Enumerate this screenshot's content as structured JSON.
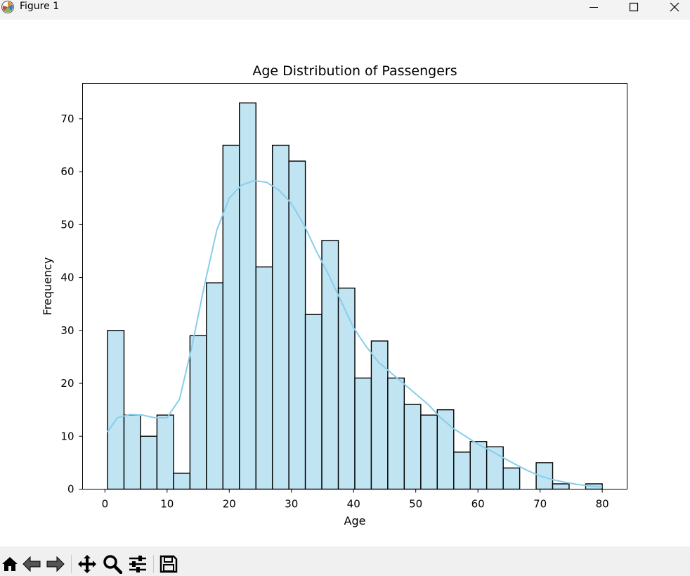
{
  "window": {
    "title": "Figure 1",
    "controls": {
      "minimize": "minimize-icon",
      "maximize": "maximize-icon",
      "close": "close-icon"
    }
  },
  "toolbar": {
    "buttons": [
      "home-icon",
      "back-arrow-icon",
      "forward-arrow-icon",
      "pan-icon",
      "zoom-icon",
      "configure-subplots-icon",
      "save-icon"
    ]
  },
  "colors": {
    "bar_fill": "#c1e4f2",
    "bar_edge": "#000000",
    "kde_line": "#87ceeb",
    "toolbar_bg": "#f0f0f0"
  },
  "chart_data": {
    "type": "bar",
    "title": "Age Distribution of Passengers",
    "xlabel": "Age",
    "ylabel": "Frequency",
    "xlim": [
      -3.6,
      84.0
    ],
    "ylim": [
      0,
      76.7
    ],
    "xticks": [
      0,
      10,
      20,
      30,
      40,
      50,
      60,
      70,
      80
    ],
    "yticks": [
      0,
      10,
      20,
      30,
      40,
      50,
      60,
      70
    ],
    "bin_edges": [
      0.42,
      3.07,
      5.72,
      8.37,
      11.03,
      13.68,
      16.33,
      18.98,
      21.63,
      24.29,
      26.94,
      29.59,
      32.24,
      34.89,
      37.55,
      40.2,
      42.85,
      45.5,
      48.15,
      50.81,
      53.46,
      56.11,
      58.76,
      61.41,
      64.07,
      66.72,
      69.37,
      72.02,
      74.67,
      77.33,
      80.0
    ],
    "values": [
      30,
      14,
      10,
      14,
      3,
      29,
      39,
      65,
      73,
      42,
      65,
      62,
      33,
      47,
      38,
      21,
      28,
      21,
      16,
      14,
      15,
      7,
      9,
      8,
      4,
      0,
      5,
      1,
      0,
      1
    ],
    "series": [
      {
        "type": "kde-line",
        "x": [
          0.4,
          2,
          4,
          6,
          8,
          10,
          12,
          14,
          16,
          18,
          20,
          22,
          24,
          26,
          28,
          30,
          32,
          34,
          36,
          38,
          40,
          42,
          44,
          46,
          48,
          50,
          52,
          54,
          56,
          58,
          60,
          62,
          64,
          66,
          68,
          70,
          72,
          74,
          76,
          78,
          80
        ],
        "y": [
          10.8,
          13.5,
          14.1,
          14,
          13.5,
          13.5,
          17,
          27,
          38.5,
          49,
          55,
          57.5,
          58.3,
          58,
          56.5,
          54,
          50,
          45,
          40.5,
          35.5,
          30.5,
          27,
          24,
          22,
          20,
          18,
          16,
          13.5,
          11.5,
          10,
          8.5,
          7.3,
          6,
          4.7,
          3.5,
          2.5,
          1.8,
          1.3,
          0.9,
          0.6,
          0.4
        ]
      }
    ],
    "grid": false,
    "legend": "none"
  }
}
